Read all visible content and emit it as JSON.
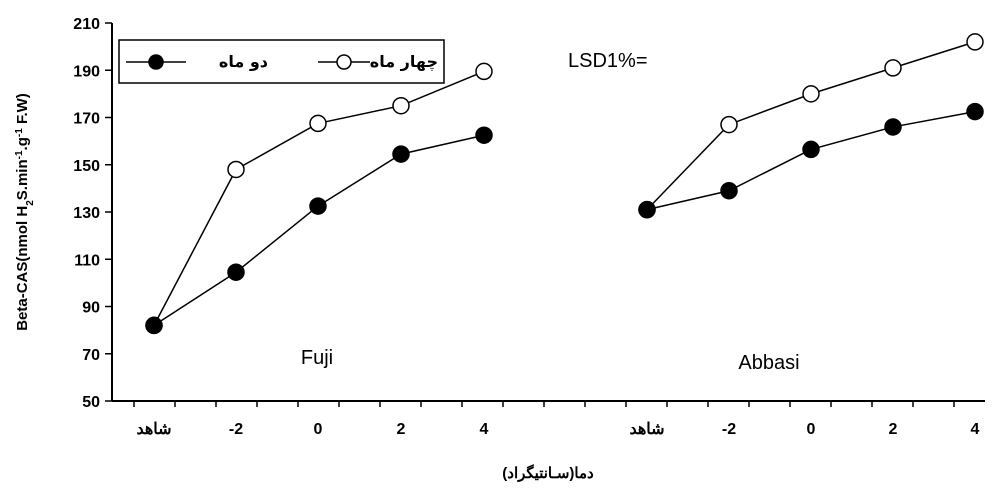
{
  "chart_data": {
    "type": "line",
    "ylabel_parts": [
      "Beta-CAS(nmol H",
      "2",
      "S.min",
      "-1",
      ".g",
      "-1",
      " F.W)"
    ],
    "xlabel": "دما(سـانتیگراد)",
    "ylim": [
      50,
      210
    ],
    "yticks": [
      50,
      70,
      90,
      110,
      130,
      150,
      170,
      190,
      210
    ],
    "legend_position": "top-left",
    "annotation": "LSD1%=",
    "series_legend": [
      {
        "name": "چهار ماه",
        "marker": "open-circle"
      },
      {
        "name": "دو ماه",
        "marker": "filled-circle"
      }
    ],
    "panels": [
      {
        "label": "Fuji",
        "categories": [
          "شاهد",
          "-2",
          "0",
          "2",
          "4"
        ],
        "series": [
          {
            "name": "چهار ماه",
            "values": [
              82,
              148,
              167.5,
              175,
              189.5
            ]
          },
          {
            "name": "دو ماه",
            "values": [
              82,
              104.5,
              132.5,
              154.5,
              162.5
            ]
          }
        ]
      },
      {
        "label": "Abbasi",
        "categories": [
          "شاهد",
          "-2",
          "0",
          "2",
          "4"
        ],
        "series": [
          {
            "name": "چهار ماه",
            "values": [
              131,
              167,
              180,
              191,
              202
            ]
          },
          {
            "name": "دو ماه",
            "values": [
              131,
              139,
              156.5,
              166,
              172.5
            ]
          }
        ]
      }
    ],
    "colors": {
      "line": "#000000",
      "filled_marker": "#000000",
      "open_marker_fill": "#ffffff"
    }
  }
}
